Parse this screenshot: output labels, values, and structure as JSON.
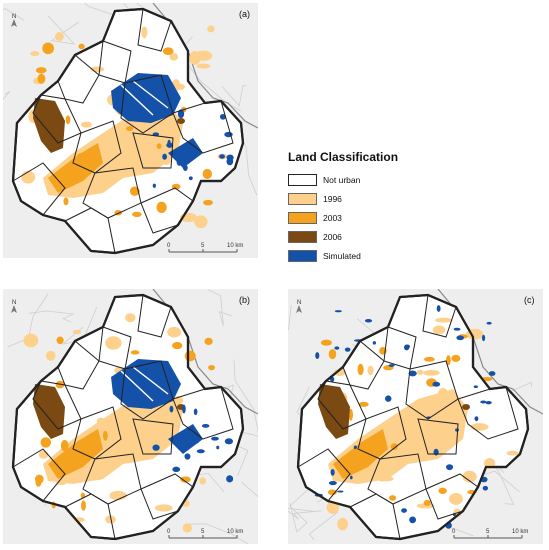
{
  "panels": [
    {
      "label": "(a)",
      "scale": {
        "ticks": [
          "0",
          "5",
          "10 km"
        ]
      },
      "north": "N"
    },
    {
      "label": "(b)",
      "scale": {
        "ticks": [
          "0",
          "5",
          "10 km"
        ]
      },
      "north": "N"
    },
    {
      "label": "(c)",
      "scale": {
        "ticks": [
          "0",
          "5",
          "10 km"
        ]
      },
      "north": "N"
    }
  ],
  "legend": {
    "title": "Land Classification",
    "items": [
      {
        "label": "Not urban",
        "color": "#ffffff"
      },
      {
        "label": "1996",
        "color": "#fdd08c"
      },
      {
        "label": "2003",
        "color": "#f5a21f"
      },
      {
        "label": "2006",
        "color": "#7a4a12"
      },
      {
        "label": "Simulated",
        "color": "#1451a8"
      }
    ]
  }
}
